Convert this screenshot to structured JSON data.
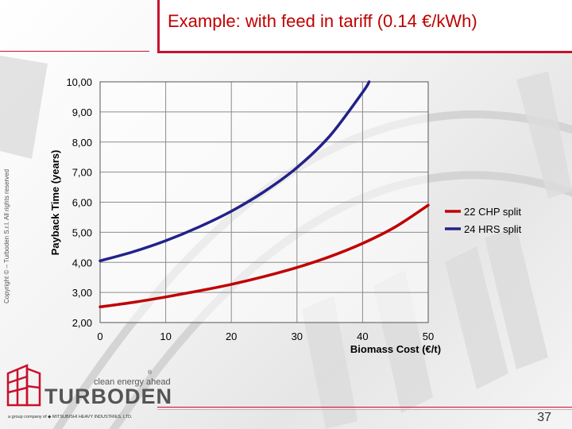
{
  "slide": {
    "title": "Example: with feed in tariff (0.14 €/kWh)",
    "copyright": "Copyright © – Turboden S.r.l. All rights reserved",
    "page_number": "37"
  },
  "logo": {
    "tagline": "clean energy ahead",
    "brand": "TURBODEN",
    "registered": "®",
    "company": "a group company of ◆ MITSUBISHI HEAVY INDUSTRIES, LTD."
  },
  "colors": {
    "accent": "#c8102e",
    "series_chp": "#c00000",
    "series_hrs": "#22228a"
  },
  "chart_data": {
    "type": "line",
    "title": "",
    "xlabel": "Biomass Cost (€/t)",
    "ylabel": "Payback Time (years)",
    "xlim": [
      0,
      50
    ],
    "ylim": [
      2,
      10
    ],
    "xticks": [
      "0",
      "10",
      "20",
      "30",
      "40",
      "50"
    ],
    "yticks": [
      "2,00",
      "3,00",
      "4,00",
      "5,00",
      "6,00",
      "7,00",
      "8,00",
      "9,00",
      "10,00"
    ],
    "grid": true,
    "legend_position": "right",
    "series": [
      {
        "name": "22 CHP split",
        "color": "#c00000",
        "x": [
          0,
          5,
          10,
          15,
          20,
          25,
          30,
          35,
          40,
          45,
          50
        ],
        "y": [
          2.52,
          2.67,
          2.85,
          3.05,
          3.27,
          3.53,
          3.83,
          4.19,
          4.63,
          5.18,
          5.9
        ]
      },
      {
        "name": "24 HRS split",
        "color": "#22228a",
        "x": [
          0,
          5,
          10,
          15,
          20,
          25,
          30,
          35,
          40,
          41
        ],
        "y": [
          4.05,
          4.35,
          4.72,
          5.17,
          5.7,
          6.35,
          7.15,
          8.2,
          9.65,
          10.0
        ]
      }
    ]
  }
}
